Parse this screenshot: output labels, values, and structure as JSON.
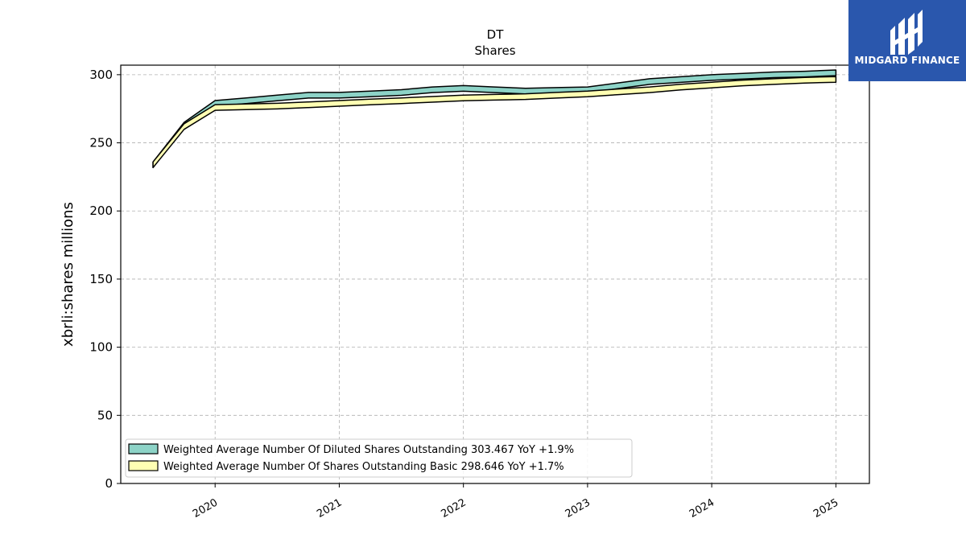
{
  "chart_data": {
    "type": "area",
    "title": "DT",
    "subtitle": "Shares",
    "xlabel": "",
    "ylabel": "xbrli:shares millions",
    "ylim": [
      0,
      307
    ],
    "xlim": [
      2019.24,
      2025.27
    ],
    "yticks": [
      0,
      50,
      100,
      150,
      200,
      250,
      300
    ],
    "ytick_labels": [
      "0",
      "50",
      "100",
      "150",
      "200",
      "250",
      "300"
    ],
    "xticks": [
      2020,
      2021,
      2022,
      2023,
      2024,
      2025
    ],
    "xtick_labels": [
      "2020",
      "2021",
      "2022",
      "2023",
      "2024",
      "2025"
    ],
    "grid": true,
    "legend_position": "lower-left",
    "series": [
      {
        "name": "Weighted Average Number Of Diluted Shares Outstanding",
        "legend_label": "Weighted Average Number Of Diluted Shares Outstanding  303.467 YoY +1.9%",
        "color": "#8dd3c7",
        "x": [
          2019.5,
          2019.75,
          2020.0,
          2020.25,
          2020.5,
          2020.75,
          2021.0,
          2021.25,
          2021.5,
          2021.75,
          2022.0,
          2022.25,
          2022.5,
          2022.75,
          2023.0,
          2023.25,
          2023.5,
          2023.75,
          2024.0,
          2024.25,
          2024.5,
          2024.75,
          2025.0
        ],
        "values": [
          236,
          265,
          281,
          283,
          285,
          287,
          287,
          288,
          289,
          291,
          292,
          291,
          290,
          290.5,
          291,
          294,
          297,
          298.5,
          300,
          301,
          302,
          302.5,
          303.467
        ]
      },
      {
        "name": "Weighted Average Number Of Shares Outstanding Basic",
        "legend_label": "Weighted Average Number Of Shares Outstanding Basic  298.646 YoY +1.7%",
        "color": "#ffffb3",
        "x": [
          2019.5,
          2019.75,
          2020.0,
          2020.25,
          2020.5,
          2020.75,
          2021.0,
          2021.25,
          2021.5,
          2021.75,
          2022.0,
          2022.25,
          2022.5,
          2022.75,
          2023.0,
          2023.25,
          2023.5,
          2023.75,
          2024.0,
          2024.25,
          2024.5,
          2024.75,
          2025.0
        ],
        "values": [
          236,
          264,
          278,
          278.5,
          279,
          280,
          281,
          282,
          283,
          284,
          285,
          285.5,
          286,
          287,
          288,
          289.5,
          291,
          293,
          294.5,
          296,
          297,
          298,
          298.646
        ]
      }
    ]
  },
  "logo": {
    "text": "MIDGARD FINANCE",
    "color": "#2a57ad"
  }
}
